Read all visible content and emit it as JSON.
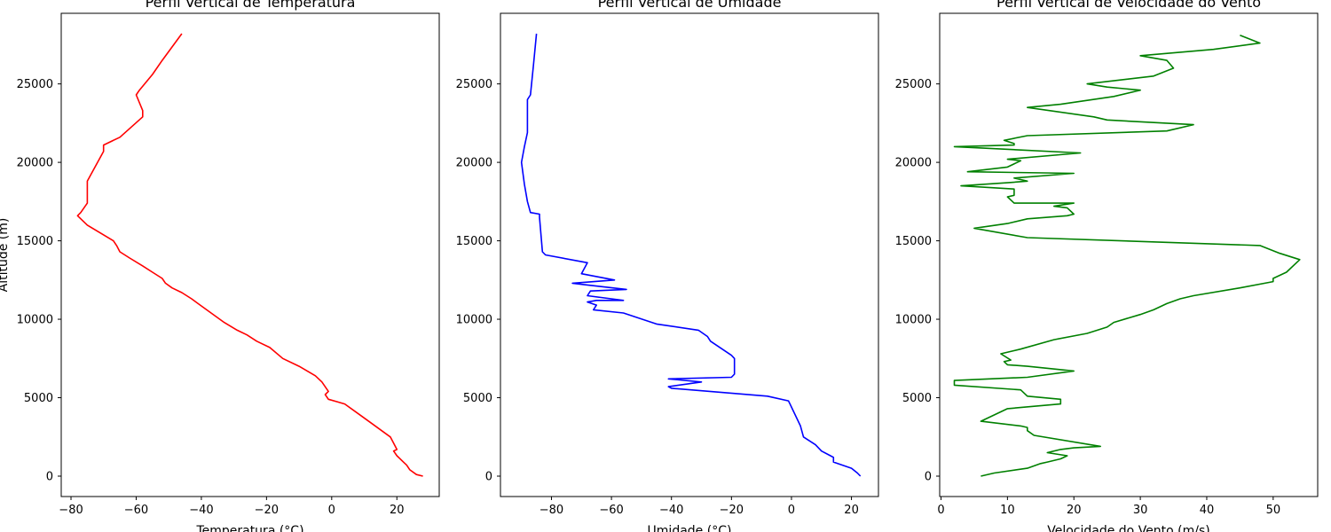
{
  "chart_data": [
    {
      "type": "line",
      "title": "Perfil Vertical de Temperatura",
      "xlabel": "Temperatura (°C)",
      "ylabel": "Altitude (m)",
      "xlim": [
        -83,
        33
      ],
      "ylim": [
        -1300,
        29500
      ],
      "xticks": [
        -80,
        -60,
        -40,
        -20,
        0,
        20
      ],
      "yticks": [
        0,
        5000,
        10000,
        15000,
        20000,
        25000
      ],
      "color": "#ff0000",
      "series": [
        {
          "x": [
            28,
            26,
            24,
            23,
            22,
            20,
            19,
            20,
            18,
            12,
            8,
            4,
            -1,
            -2,
            -1,
            -3,
            -5,
            -10,
            -15,
            -19,
            -23,
            -26,
            -29,
            -33,
            -37,
            -41,
            -43,
            -46,
            -49,
            -51,
            -52,
            -55,
            -58,
            -62,
            -65,
            -66,
            -67,
            -75,
            -78,
            -77,
            -75,
            -75,
            -75,
            -70,
            -70,
            -65,
            -58,
            -58,
            -60,
            -59,
            -55,
            -52,
            -46
          ],
          "y": [
            0,
            100,
            400,
            700,
            900,
            1300,
            1600,
            1700,
            2500,
            3400,
            4000,
            4600,
            4900,
            5200,
            5400,
            6000,
            6400,
            7000,
            7500,
            8200,
            8600,
            9000,
            9300,
            9800,
            10400,
            11000,
            11300,
            11700,
            12000,
            12300,
            12600,
            13000,
            13400,
            13900,
            14300,
            14700,
            15000,
            16000,
            16600,
            16800,
            17400,
            18000,
            18800,
            20700,
            21100,
            21600,
            22900,
            23300,
            24300,
            24600,
            25600,
            26500,
            28200
          ]
        }
      ]
    },
    {
      "type": "line",
      "title": "Perfil Vertical de Umidade",
      "xlabel": "Umidade (°C)",
      "ylabel": "",
      "xlim": [
        -97,
        29
      ],
      "ylim": [
        -1300,
        29500
      ],
      "xticks": [
        -80,
        -60,
        -40,
        -20,
        0,
        20
      ],
      "yticks": [
        0,
        5000,
        10000,
        15000,
        20000,
        25000
      ],
      "color": "#0000ff",
      "series": [
        {
          "x": [
            23,
            22,
            20,
            14,
            14,
            13,
            10,
            8,
            4,
            3,
            -1,
            -8,
            -40,
            -41,
            -30,
            -41,
            -20,
            -19,
            -19,
            -20,
            -27,
            -28,
            -31,
            -45,
            -56,
            -66,
            -65,
            -68,
            -65,
            -56,
            -68,
            -67,
            -55,
            -69,
            -73,
            -59,
            -70,
            -68,
            -82,
            -83,
            -84,
            -84,
            -87,
            -88,
            -89,
            -90,
            -89,
            -88,
            -88,
            -88,
            -88,
            -87,
            -86,
            -85
          ],
          "y": [
            0,
            200,
            500,
            900,
            1200,
            1300,
            1600,
            2000,
            2500,
            3200,
            4800,
            5100,
            5600,
            5700,
            6000,
            6200,
            6300,
            6500,
            7500,
            7700,
            8600,
            8900,
            9300,
            9700,
            10400,
            10600,
            10900,
            11100,
            11200,
            11200,
            11500,
            11800,
            11900,
            12200,
            12300,
            12500,
            12900,
            13600,
            14100,
            14300,
            16500,
            16700,
            16800,
            17500,
            18600,
            20000,
            21000,
            21900,
            22900,
            23300,
            24000,
            24300,
            26200,
            28200
          ]
        }
      ]
    },
    {
      "type": "line",
      "title": "Perfil Vertical de Velocidade do Vento",
      "xlabel": "Velocidade do Vento (m/s)",
      "ylabel": "",
      "xlim": [
        -0.2,
        56.7
      ],
      "ylim": [
        -1300,
        29500
      ],
      "xticks": [
        0,
        10,
        20,
        30,
        40,
        50
      ],
      "yticks": [
        0,
        5000,
        10000,
        15000,
        20000,
        25000
      ],
      "color": "#008000",
      "series": [
        {
          "x": [
            6,
            8,
            13,
            15,
            16,
            18,
            19,
            16,
            18,
            20,
            24,
            14,
            13,
            13,
            12,
            6,
            10,
            18,
            18,
            13,
            12,
            2,
            2,
            13,
            20,
            13,
            10,
            9.5,
            10.5,
            9,
            12,
            17,
            22,
            25,
            26,
            30,
            32,
            34,
            36,
            38,
            45,
            50,
            50,
            52,
            54,
            51,
            48,
            13,
            5,
            10,
            13,
            19,
            20,
            19,
            17,
            20,
            11,
            10,
            11,
            11,
            3,
            10,
            13,
            11,
            20,
            4,
            10,
            12,
            10,
            21,
            2,
            11,
            11,
            9.5,
            13,
            34,
            38,
            25,
            23,
            13,
            18,
            26,
            30,
            25,
            22,
            28,
            32,
            35,
            34,
            30,
            41,
            48,
            45
          ],
          "y": [
            0,
            200,
            500,
            800,
            900,
            1100,
            1300,
            1500,
            1700,
            1800,
            1900,
            2600,
            2900,
            3100,
            3200,
            3500,
            4300,
            4600,
            4900,
            5100,
            5500,
            5800,
            6100,
            6300,
            6700,
            7000,
            7100,
            7300,
            7400,
            7800,
            8100,
            8700,
            9100,
            9500,
            9800,
            10300,
            10600,
            11000,
            11300,
            11500,
            12000,
            12400,
            12600,
            13000,
            13800,
            14200,
            14700,
            15200,
            15800,
            16100,
            16400,
            16600,
            16700,
            17100,
            17200,
            17400,
            17400,
            17800,
            17900,
            18300,
            18500,
            18700,
            18800,
            19000,
            19300,
            19400,
            19700,
            20100,
            20200,
            20600,
            21000,
            21100,
            21200,
            21400,
            21700,
            22000,
            22400,
            22700,
            22900,
            23500,
            23700,
            24200,
            24600,
            24800,
            25000,
            25300,
            25500,
            26000,
            26500,
            26800,
            27200,
            27600,
            28100
          ]
        }
      ]
    }
  ]
}
